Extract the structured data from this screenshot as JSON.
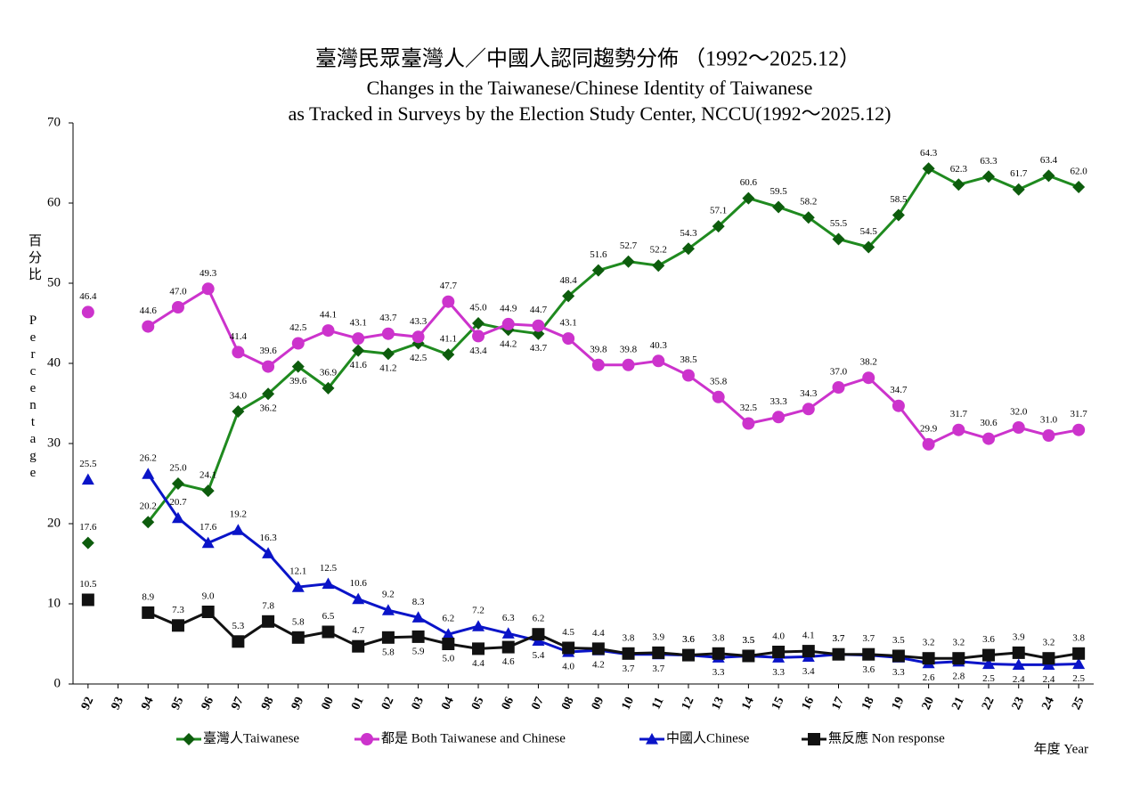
{
  "chart_data": {
    "type": "line",
    "title": "臺灣民眾臺灣人／中國人認同趨勢分佈 （1992～2025.12）",
    "subtitle": [
      "Changes in the Taiwanese/Chinese Identity of Taiwanese",
      "as Tracked in Surveys by the Election Study Center, NCCU(1992～2025.12)"
    ],
    "x_label": "年度 Year",
    "y_label": [
      "百分比",
      "Percentage"
    ],
    "categories": [
      "92",
      "93",
      "94",
      "95",
      "96",
      "97",
      "98",
      "99",
      "00",
      "01",
      "02",
      "03",
      "04",
      "05",
      "06",
      "07",
      "08",
      "09",
      "10",
      "11",
      "12",
      "13",
      "14",
      "15",
      "16",
      "17",
      "18",
      "19",
      "20",
      "21",
      "22",
      "23",
      "24",
      "25"
    ],
    "ylim": [
      0,
      70
    ],
    "yticks": [
      0,
      10,
      20,
      30,
      40,
      50,
      60,
      70
    ],
    "grid": false,
    "legend": "bottom",
    "series": [
      {
        "name": "臺灣人Taiwanese",
        "color": "#1f8a1f",
        "marker": "diamond",
        "values": [
          17.6,
          null,
          20.2,
          25.0,
          24.1,
          34.0,
          36.2,
          39.6,
          36.9,
          41.6,
          41.2,
          42.5,
          41.1,
          45.0,
          44.2,
          43.7,
          48.4,
          51.6,
          52.7,
          52.2,
          54.3,
          57.1,
          60.6,
          59.5,
          58.2,
          55.5,
          54.5,
          58.5,
          64.3,
          62.3,
          63.3,
          61.7,
          63.4,
          62.0
        ],
        "value_labels": [
          "17.6",
          null,
          "20.2",
          "25.0",
          "24.1",
          "34.0",
          "36.2",
          "39.6",
          "36.9",
          "41.6",
          "41.2",
          "42.5",
          "41.1",
          "45.0",
          "44.2",
          "43.7",
          "48.4",
          "51.6",
          "52.7",
          "52.2",
          "54.3",
          "57.1",
          "60.6",
          "59.5",
          "58.2",
          "55.5",
          "54.5",
          "58.5",
          "64.3",
          "62.3",
          "63.3",
          "61.7",
          "63.4",
          "62.0"
        ]
      },
      {
        "name": "都是 Both Taiwanese and Chinese",
        "color": "#cc33cc",
        "marker": "circle",
        "values": [
          46.4,
          null,
          44.6,
          47.0,
          49.3,
          41.4,
          39.6,
          42.5,
          44.1,
          43.1,
          43.7,
          43.3,
          47.7,
          43.4,
          44.9,
          44.7,
          43.1,
          39.8,
          39.8,
          40.3,
          38.5,
          35.8,
          32.5,
          33.3,
          34.3,
          37.0,
          38.2,
          34.7,
          29.9,
          31.7,
          30.6,
          32.0,
          31.0,
          31.7
        ],
        "value_labels": [
          "46.4",
          null,
          "44.6",
          "47.0",
          "49.3",
          "41.4",
          "39.6",
          "42.5",
          "44.1",
          "43.1",
          "43.7",
          "43.3",
          "47.7",
          "43.4",
          "44.9",
          "44.7",
          "43.1",
          "39.8",
          "39.8",
          "40.3",
          "38.5",
          "35.8",
          "32.5",
          "33.3",
          "34.3",
          "37.0",
          "38.2",
          "34.7",
          "29.9",
          "31.7",
          "30.6",
          "32.0",
          "31.0",
          "31.7"
        ]
      },
      {
        "name": "中國人Chinese",
        "color": "#0a14c8",
        "marker": "triangle",
        "values": [
          25.5,
          null,
          26.2,
          20.7,
          17.6,
          19.2,
          16.3,
          12.1,
          12.5,
          10.6,
          9.2,
          8.3,
          6.2,
          7.2,
          6.3,
          5.4,
          4.0,
          4.2,
          3.7,
          3.7,
          3.6,
          3.3,
          3.5,
          3.3,
          3.4,
          3.7,
          3.6,
          3.3,
          2.6,
          2.8,
          2.5,
          2.4,
          2.4,
          2.5
        ],
        "value_labels": [
          "25.5",
          null,
          "26.2",
          "20.7",
          "17.6",
          "19.2",
          "16.3",
          "12.1",
          "12.5",
          "10.6",
          "9.2",
          "8.3",
          "6.2",
          "7.2",
          "6.3",
          "5.4",
          "4.0",
          "4.2",
          "3.7",
          "3.7",
          "3.6",
          "3.3",
          "3.5",
          "3.3",
          "3.4",
          "3.7",
          "3.6",
          "3.3",
          "2.6",
          "2.8",
          "2.5",
          "2.4",
          "2.4",
          "2.5"
        ]
      },
      {
        "name": "無反應 Non response",
        "color": "#111111",
        "marker": "square",
        "values": [
          10.5,
          null,
          8.9,
          7.3,
          9.0,
          5.3,
          7.8,
          5.8,
          6.5,
          4.7,
          5.8,
          5.9,
          5.0,
          4.4,
          4.6,
          6.2,
          4.5,
          4.4,
          3.8,
          3.9,
          3.6,
          3.8,
          3.5,
          4.0,
          4.1,
          3.7,
          3.7,
          3.5,
          3.2,
          3.2,
          3.6,
          3.9,
          3.2,
          3.8
        ],
        "value_labels": [
          "10.5",
          null,
          "8.9",
          "7.3",
          "9.0",
          "5.3",
          "7.8",
          "5.8",
          "6.5",
          "4.7",
          "5.8",
          "5.9",
          "5.0",
          "4.4",
          "4.6",
          "6.2",
          "4.5",
          "4.4",
          "3.8",
          "3.9",
          "3.6",
          "3.8",
          "3.5",
          "4.0",
          "4.1",
          "3.7",
          "3.7",
          "3.5",
          "3.2",
          "3.2",
          "3.6",
          "3.9",
          "3.2",
          "3.8"
        ]
      }
    ]
  }
}
